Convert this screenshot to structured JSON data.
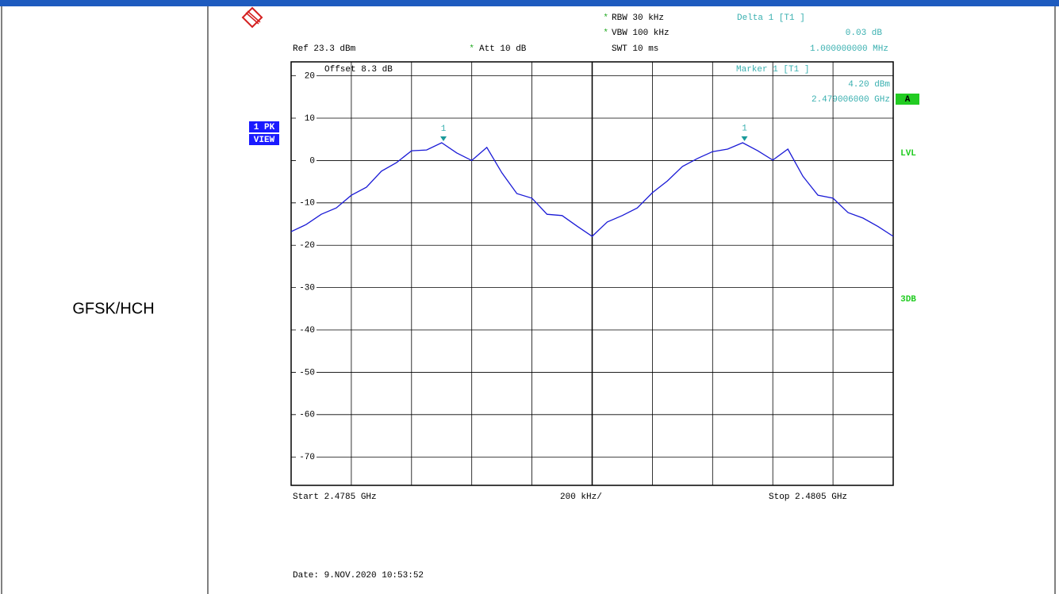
{
  "table": {
    "label": "GFSK/HCH"
  },
  "chart_data": {
    "type": "line",
    "x": [
      2.4785,
      2.47855,
      2.4786,
      2.47865,
      2.4787,
      2.47875,
      2.4788,
      2.47885,
      2.4789,
      2.47895,
      2.479,
      2.47905,
      2.4791,
      2.47915,
      2.4792,
      2.47925,
      2.4793,
      2.47935,
      2.4794,
      2.47945,
      2.4795,
      2.47955,
      2.4796,
      2.47965,
      2.4797,
      2.47975,
      2.4798,
      2.47985,
      2.4799,
      2.47995,
      2.48,
      2.48005,
      2.4801,
      2.48015,
      2.4802,
      2.48025,
      2.4803,
      2.48035,
      2.4804,
      2.48045,
      2.4805
    ],
    "series": [
      {
        "color": "#1a1ad6",
        "values": [
          -16.8,
          -15.1,
          -12.7,
          -11.2,
          -8.2,
          -6.3,
          -2.5,
          -0.5,
          2.3,
          2.5,
          4.2,
          1.8,
          0.0,
          3.1,
          -2.9,
          -7.8,
          -8.9,
          -12.7,
          -13.0,
          -15.5,
          -17.9,
          -14.5,
          -13.0,
          -11.2,
          -7.6,
          -4.8,
          -1.4,
          0.5,
          2.1,
          2.7,
          4.2,
          2.3,
          0.1,
          2.7,
          -3.7,
          -8.2,
          -8.9,
          -12.3,
          -13.6,
          -15.6,
          -17.9
        ]
      }
    ],
    "xlim": [
      2.4785,
      2.4805
    ],
    "ylim": [
      -76.7,
      23.3
    ],
    "yticks": [
      20,
      10,
      0,
      -10,
      -20,
      -30,
      -40,
      -50,
      -60,
      -70
    ],
    "grid": true,
    "markers": [
      {
        "label": "1",
        "x": 2.479006,
        "y": 4.2
      },
      {
        "label": "1",
        "x": 2.480006,
        "y": 4.23
      }
    ],
    "star": "*",
    "annotations": [
      "RBW 30 kHz",
      "VBW 100 kHz",
      "SWT 10 ms",
      "Ref  23.3 dBm",
      "Att  10 dB",
      "Offset  8.3 dB",
      "Delta 1 [T1 ]",
      "0.03 dB",
      "1.000000000 MHz",
      "Marker 1 [T1 ]",
      "4.20 dBm",
      "2.479006000 GHz",
      "1 PK",
      "VIEW",
      "A",
      "LVL",
      "3DB",
      "Start 2.4785 GHz",
      "200 kHz/",
      "Stop 2.4805 GHz",
      "Date: 9.NOV.2020  10:53:52"
    ]
  }
}
